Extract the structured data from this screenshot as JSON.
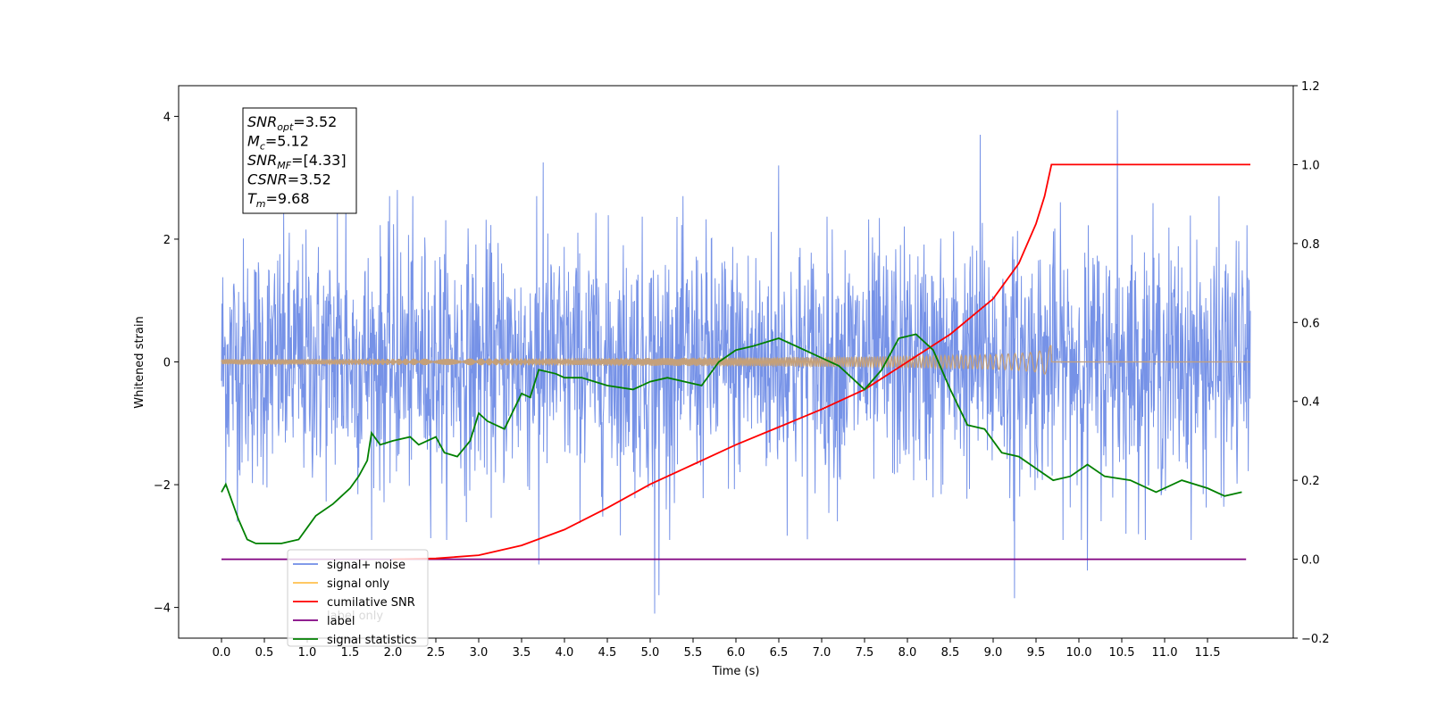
{
  "chart_data": {
    "type": "line",
    "xlabel": "Time (s)",
    "ylabel": "Whitened strain",
    "xlim": [
      -0.5,
      12.5
    ],
    "ylim": [
      -4.5,
      4.5
    ],
    "y2lim": [
      -0.2,
      1.2
    ],
    "x_ticks": [
      "0.0",
      "0.5",
      "1.0",
      "1.5",
      "2.0",
      "2.5",
      "3.0",
      "3.5",
      "4.0",
      "4.5",
      "5.0",
      "5.5",
      "6.0",
      "6.5",
      "7.0",
      "7.5",
      "8.0",
      "8.5",
      "9.0",
      "9.5",
      "10.0",
      "10.5",
      "11.0",
      "11.5"
    ],
    "y_ticks": [
      "4",
      "2",
      "0",
      "−2",
      "−4"
    ],
    "y2_ticks": [
      "1.2",
      "1.0",
      "0.8",
      "0.6",
      "0.4",
      "0.2",
      "0.0",
      "−0.2"
    ],
    "annotation": [
      {
        "base": "SNR",
        "sub": "opt",
        "value": "=3.52"
      },
      {
        "base": "M",
        "sub": "c",
        "value": "=5.12"
      },
      {
        "base": "SNR",
        "sub": "MF",
        "value": "=[4.33]"
      },
      {
        "base": "CSNR",
        "sub": "",
        "value": "=3.52"
      },
      {
        "base": "T",
        "sub": "m",
        "value": "=9.68"
      }
    ],
    "legend_position": "lower-left",
    "legend": [
      {
        "label": "signal+ noise",
        "color": "#6f8ce6"
      },
      {
        "label": "signal only",
        "color": "#ffc04d"
      },
      {
        "label": "cumilative SNR",
        "color": "#ff0000"
      },
      {
        "label": "label",
        "color": "#800080"
      },
      {
        "label": "signal statistics",
        "color": "#008000"
      }
    ],
    "hidden_legend_text": "label only",
    "noise": {
      "color": "#6f8ce6",
      "x_range": [
        0.0,
        12.0
      ],
      "typical_amplitude": 1.6,
      "notable_peaks": [
        {
          "x": 1.35,
          "y": 2.6
        },
        {
          "x": 1.45,
          "y": 2.8
        },
        {
          "x": 2.05,
          "y": 2.8
        },
        {
          "x": 3.75,
          "y": 3.25
        },
        {
          "x": 6.5,
          "y": 3.2
        },
        {
          "x": 8.85,
          "y": 3.7
        },
        {
          "x": 10.45,
          "y": 4.1
        }
      ],
      "notable_troughs": [
        {
          "x": 3.7,
          "y": -3.3
        },
        {
          "x": 5.05,
          "y": -4.1
        },
        {
          "x": 5.1,
          "y": -3.8
        },
        {
          "x": 9.25,
          "y": -3.85
        },
        {
          "x": 10.1,
          "y": -3.4
        }
      ]
    },
    "signal": {
      "color": "#c4a07a",
      "t_start": 0.0,
      "t_merge": 9.68,
      "t_end": 12.0,
      "max_amplitude": 0.3
    },
    "cumulative_snr": {
      "color": "#ff0000",
      "axis": "right",
      "points": [
        [
          2.0,
          0.0
        ],
        [
          2.5,
          0.002
        ],
        [
          3.0,
          0.01
        ],
        [
          3.5,
          0.035
        ],
        [
          4.0,
          0.075
        ],
        [
          4.5,
          0.13
        ],
        [
          5.0,
          0.19
        ],
        [
          5.5,
          0.24
        ],
        [
          6.0,
          0.29
        ],
        [
          6.5,
          0.335
        ],
        [
          7.0,
          0.38
        ],
        [
          7.5,
          0.43
        ],
        [
          8.0,
          0.5
        ],
        [
          8.5,
          0.57
        ],
        [
          9.0,
          0.66
        ],
        [
          9.3,
          0.75
        ],
        [
          9.5,
          0.85
        ],
        [
          9.6,
          0.92
        ],
        [
          9.68,
          1.0
        ],
        [
          12.0,
          1.0
        ]
      ]
    },
    "label_line": {
      "color": "#800080",
      "axis": "right",
      "points": [
        [
          0.0,
          0.0
        ],
        [
          11.95,
          0.0
        ]
      ]
    },
    "signal_statistics": {
      "color": "#008000",
      "axis": "right",
      "points": [
        [
          0.0,
          0.17
        ],
        [
          0.05,
          0.19
        ],
        [
          0.1,
          0.16
        ],
        [
          0.2,
          0.1
        ],
        [
          0.3,
          0.05
        ],
        [
          0.4,
          0.04
        ],
        [
          0.5,
          0.04
        ],
        [
          0.7,
          0.04
        ],
        [
          0.9,
          0.05
        ],
        [
          1.0,
          0.08
        ],
        [
          1.1,
          0.11
        ],
        [
          1.3,
          0.14
        ],
        [
          1.5,
          0.18
        ],
        [
          1.6,
          0.21
        ],
        [
          1.7,
          0.25
        ],
        [
          1.75,
          0.32
        ],
        [
          1.85,
          0.29
        ],
        [
          2.0,
          0.3
        ],
        [
          2.2,
          0.31
        ],
        [
          2.3,
          0.29
        ],
        [
          2.5,
          0.31
        ],
        [
          2.6,
          0.27
        ],
        [
          2.75,
          0.26
        ],
        [
          2.9,
          0.3
        ],
        [
          3.0,
          0.37
        ],
        [
          3.1,
          0.35
        ],
        [
          3.3,
          0.33
        ],
        [
          3.5,
          0.42
        ],
        [
          3.6,
          0.41
        ],
        [
          3.7,
          0.48
        ],
        [
          3.9,
          0.47
        ],
        [
          4.0,
          0.46
        ],
        [
          4.2,
          0.46
        ],
        [
          4.5,
          0.44
        ],
        [
          4.8,
          0.43
        ],
        [
          5.0,
          0.45
        ],
        [
          5.2,
          0.46
        ],
        [
          5.4,
          0.45
        ],
        [
          5.6,
          0.44
        ],
        [
          5.8,
          0.5
        ],
        [
          6.0,
          0.53
        ],
        [
          6.2,
          0.54
        ],
        [
          6.5,
          0.56
        ],
        [
          6.8,
          0.53
        ],
        [
          7.0,
          0.51
        ],
        [
          7.2,
          0.49
        ],
        [
          7.5,
          0.43
        ],
        [
          7.7,
          0.48
        ],
        [
          7.9,
          0.56
        ],
        [
          8.1,
          0.57
        ],
        [
          8.3,
          0.53
        ],
        [
          8.5,
          0.43
        ],
        [
          8.7,
          0.34
        ],
        [
          8.9,
          0.33
        ],
        [
          9.1,
          0.27
        ],
        [
          9.3,
          0.26
        ],
        [
          9.5,
          0.23
        ],
        [
          9.7,
          0.2
        ],
        [
          9.9,
          0.21
        ],
        [
          10.1,
          0.24
        ],
        [
          10.3,
          0.21
        ],
        [
          10.6,
          0.2
        ],
        [
          10.9,
          0.17
        ],
        [
          11.2,
          0.2
        ],
        [
          11.5,
          0.18
        ],
        [
          11.7,
          0.16
        ],
        [
          11.9,
          0.17
        ]
      ]
    }
  }
}
